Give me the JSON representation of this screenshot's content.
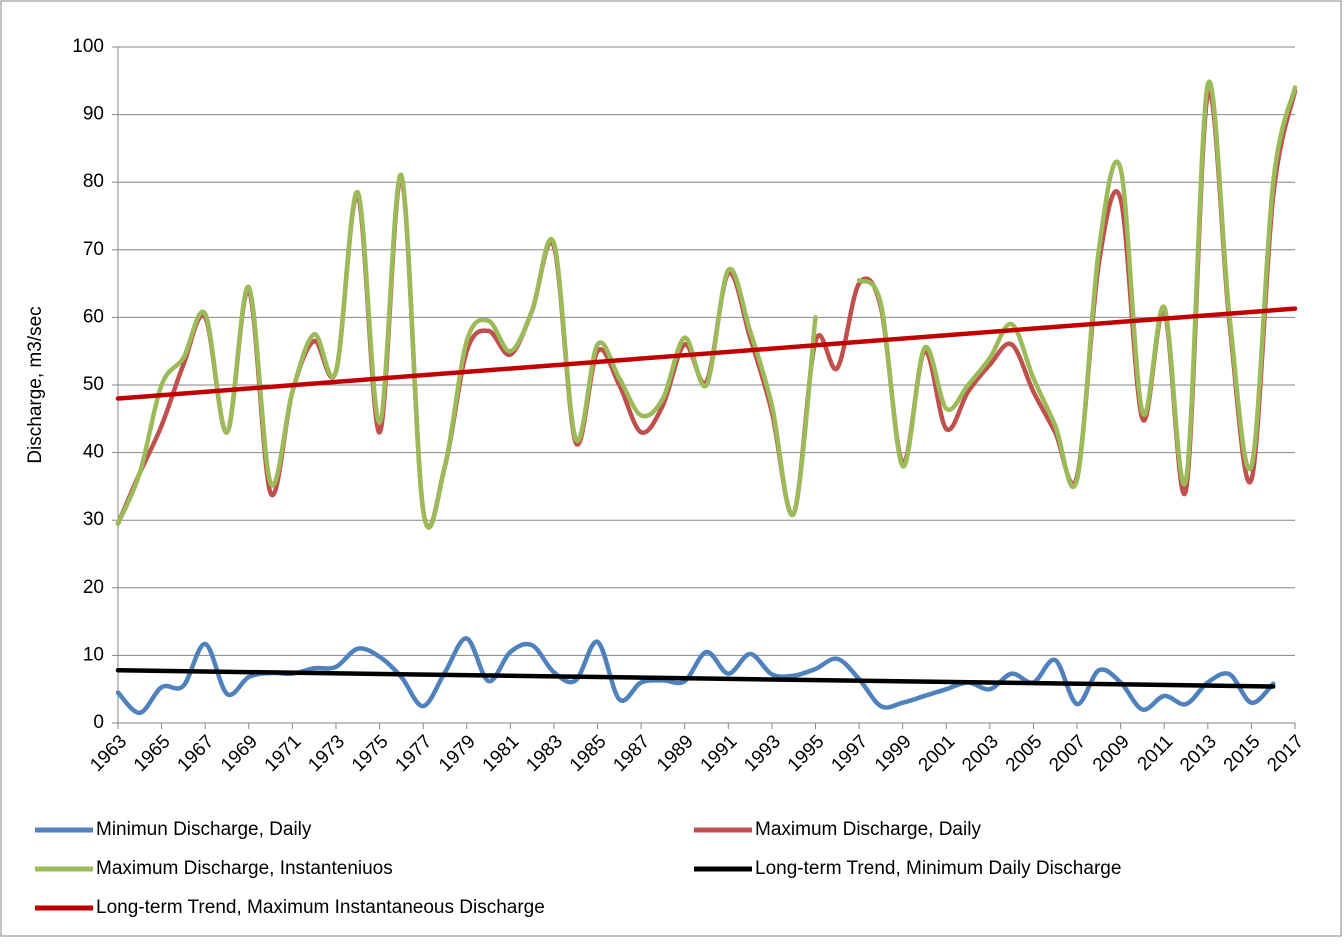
{
  "chart_data": {
    "type": "line",
    "y_label": "Discharge, m3/sec",
    "x": [
      1963,
      1964,
      1965,
      1966,
      1967,
      1968,
      1969,
      1970,
      1971,
      1972,
      1973,
      1974,
      1975,
      1976,
      1977,
      1978,
      1979,
      1980,
      1981,
      1982,
      1983,
      1984,
      1985,
      1986,
      1987,
      1988,
      1989,
      1990,
      1991,
      1992,
      1993,
      1994,
      1995,
      1996,
      1997,
      1998,
      1999,
      2000,
      2001,
      2002,
      2003,
      2004,
      2005,
      2006,
      2007,
      2008,
      2009,
      2010,
      2011,
      2012,
      2013,
      2014,
      2015,
      2016,
      2017
    ],
    "xlim": [
      1963,
      2017
    ],
    "xticks": [
      1963,
      1965,
      1967,
      1969,
      1971,
      1973,
      1975,
      1977,
      1979,
      1981,
      1983,
      1985,
      1987,
      1989,
      1991,
      1993,
      1995,
      1997,
      1999,
      2001,
      2003,
      2005,
      2007,
      2009,
      2011,
      2013,
      2015,
      2017
    ],
    "ylim": [
      0,
      100
    ],
    "yticks": [
      0,
      10,
      20,
      30,
      40,
      50,
      60,
      70,
      80,
      90,
      100
    ],
    "grid": true,
    "legend": "bottom",
    "series": [
      {
        "name": "Minimun Discharge, Daily",
        "color": "#4f81bd",
        "values": [
          4.5,
          1.5,
          5.3,
          5.5,
          11.7,
          4.3,
          6.8,
          7.4,
          7.3,
          8.1,
          8.3,
          11,
          9.8,
          6.8,
          2.5,
          7.5,
          12.5,
          6.2,
          10.5,
          11.5,
          7.5,
          6.3,
          12,
          3.5,
          6,
          6.3,
          6.2,
          10.5,
          7.3,
          10.2,
          7.2,
          7,
          8,
          9.5,
          6.5,
          2.5,
          3,
          4,
          5,
          6,
          5,
          7.3,
          6,
          9.3,
          2.8,
          7.8,
          6,
          2,
          4,
          2.8,
          6,
          7.2,
          3,
          5.8,
          null
        ]
      },
      {
        "name": "Maximum Discharge, Daily",
        "color": "#c0504d",
        "values": [
          29.5,
          37,
          44,
          53,
          60,
          43,
          64,
          34,
          49,
          56.5,
          52,
          78,
          43,
          80.5,
          31.5,
          38,
          55,
          58,
          54.5,
          61,
          70.5,
          41.5,
          55,
          50,
          43,
          47,
          56,
          50.5,
          66.5,
          57,
          46,
          31,
          56.5,
          52.5,
          65,
          61.5,
          38.5,
          55,
          43.5,
          49,
          53,
          56,
          49,
          43,
          36.5,
          68,
          77.5,
          45,
          61,
          34.5,
          93,
          59,
          36,
          78,
          93.5
        ]
      },
      {
        "name": "Maximum Discharge, Instanteniuos",
        "color": "#9bbb59",
        "values": [
          29.5,
          37,
          50,
          54,
          60.5,
          43,
          64.5,
          35.5,
          49,
          57.5,
          52,
          78.5,
          44.5,
          81,
          31.5,
          38,
          56.5,
          59.5,
          55,
          61,
          71,
          42,
          56,
          51,
          45.5,
          48,
          57,
          50,
          67,
          58,
          47,
          31,
          60,
          null,
          65.5,
          62,
          38,
          55.5,
          46.5,
          50,
          54,
          59,
          51,
          44,
          36,
          70,
          82,
          46,
          61.5,
          36,
          94.5,
          60,
          38,
          80,
          94
        ]
      },
      {
        "name": "Long-term Trend, Minimum Daily Discharge",
        "color": "#000000",
        "x": [
          1963,
          2016
        ],
        "values": [
          7.8,
          5.4
        ]
      },
      {
        "name": "Long-term Trend, Maximum Instantaneous Discharge",
        "color": "#c00000",
        "x": [
          1963,
          2017
        ],
        "values": [
          48,
          61.3
        ]
      }
    ]
  }
}
